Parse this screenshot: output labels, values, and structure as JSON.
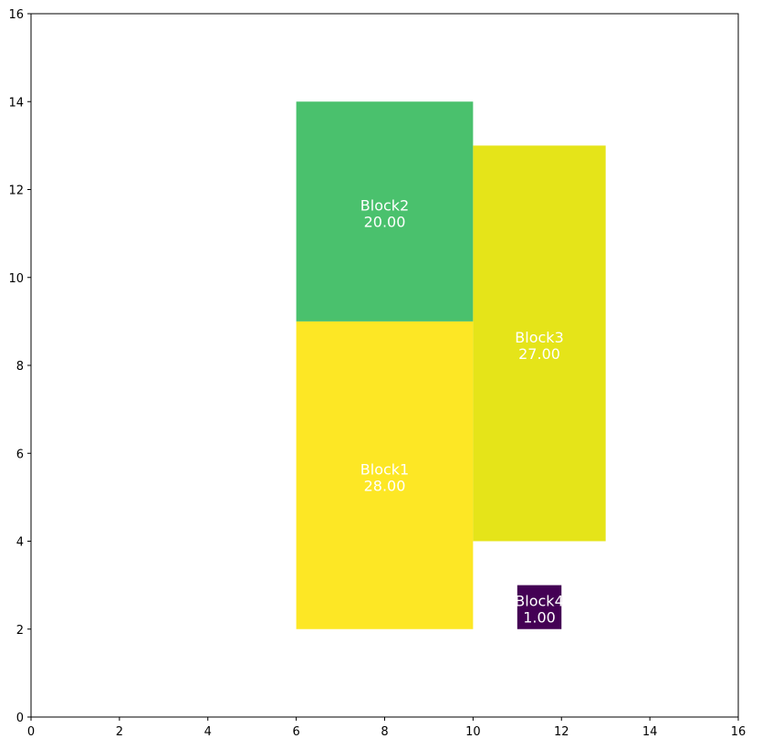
{
  "chart_data": {
    "type": "rectangles",
    "title": "",
    "xlabel": "",
    "ylabel": "",
    "xlim": [
      0,
      16
    ],
    "ylim": [
      0,
      16
    ],
    "x_ticks": [
      "0",
      "2",
      "4",
      "6",
      "8",
      "10",
      "12",
      "14",
      "16"
    ],
    "y_ticks": [
      "0",
      "2",
      "4",
      "6",
      "8",
      "10",
      "12",
      "14",
      "16"
    ],
    "grid": false,
    "blocks": [
      {
        "name": "Block1",
        "value_label": "28.00",
        "value": 28,
        "x": 6,
        "y": 2,
        "width": 4,
        "height": 7,
        "color": "#fde725"
      },
      {
        "name": "Block2",
        "value_label": "20.00",
        "value": 20,
        "x": 6,
        "y": 9,
        "width": 4,
        "height": 5,
        "color": "#4ac16d"
      },
      {
        "name": "Block3",
        "value_label": "27.00",
        "value": 27,
        "x": 10,
        "y": 4,
        "width": 3,
        "height": 9,
        "color": "#e5e419"
      },
      {
        "name": "Block4",
        "value_label": "1.00",
        "value": 1,
        "x": 11,
        "y": 2,
        "width": 1,
        "height": 1,
        "color": "#440154"
      }
    ]
  }
}
